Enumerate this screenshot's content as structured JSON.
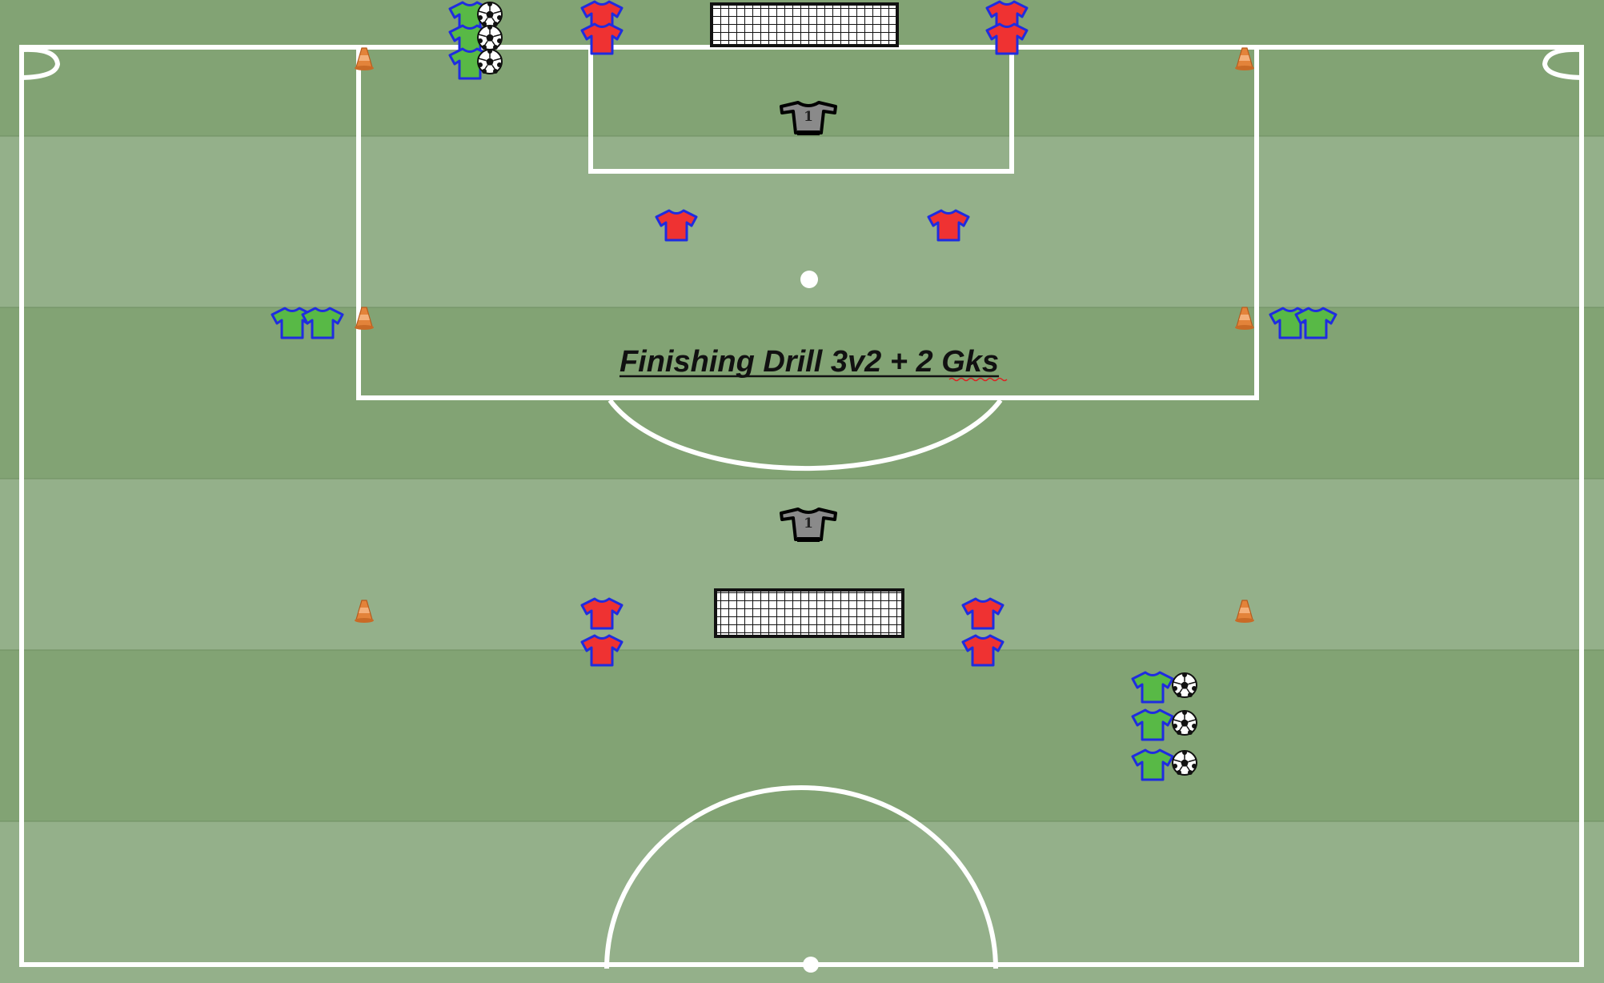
{
  "title": "Finishing Drill 3v2 + 2 Gks",
  "goalkeeper_number": "1",
  "colors": {
    "grass_dark": "#82a374",
    "grass_light": "#94b08a",
    "lines": "#ffffff",
    "attacker_shirt": "#58b946",
    "defender_shirt": "#ef3232",
    "shirt_outline": "#1f2ce0",
    "goalkeeper_shirt": "#8a8a8a",
    "cone": "#e3833a"
  },
  "icons": [
    "attacker-shirt-icon",
    "defender-shirt-icon",
    "goalkeeper-shirt-icon",
    "football-icon",
    "cone-icon",
    "goal-net-icon"
  ]
}
